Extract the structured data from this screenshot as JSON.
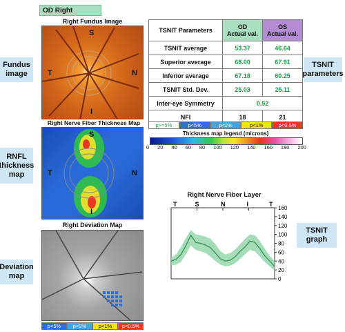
{
  "header": {
    "eye_tab": "OD Right"
  },
  "side_labels": {
    "fundus": "Fundus image",
    "rnfl": "RNFL thickness map",
    "deviation": "Deviation map",
    "tsnit_params": "TSNIT parameters",
    "tsnit_graph": "TSNIT graph"
  },
  "fundus": {
    "title": "Right Fundus Image",
    "dirs": {
      "s": "S",
      "n": "N",
      "i": "I",
      "t": "T"
    }
  },
  "thickness": {
    "title": "Right Nerve Fiber Thickness Map",
    "dirs": {
      "s": "S",
      "n": "N",
      "i": "I",
      "t": "T"
    }
  },
  "deviation": {
    "title": "Right Deviation Map",
    "legend": [
      "p<5%",
      "p<2%",
      "p<1%",
      "p<0.5%"
    ]
  },
  "table": {
    "header": {
      "param": "TSNIT Parameters",
      "od": "OD",
      "od_sub": "Actual val.",
      "os": "OS",
      "os_sub": "Actual val."
    },
    "rows": [
      {
        "label": "TSNIT average",
        "od": "53.37",
        "os": "46.64"
      },
      {
        "label": "Superior average",
        "od": "68.00",
        "os": "67.91"
      },
      {
        "label": "Inferior average",
        "od": "67.18",
        "os": "60.25"
      },
      {
        "label": "TSNIT Std. Dev.",
        "od": "25.03",
        "os": "25.11"
      }
    ],
    "symmetry": {
      "label": "Inter-eye Symmetry",
      "value": "0.92"
    },
    "nfi": {
      "label": "NFI",
      "od": "18",
      "os": "21"
    },
    "prob_legend": [
      "p>=5%",
      "p<5%",
      "p<2%",
      "p<1%",
      "p<0.5%"
    ]
  },
  "colorbar": {
    "title": "Thickness map legend (microns)",
    "ticks": [
      "0",
      "20",
      "40",
      "60",
      "80",
      "100",
      "120",
      "140",
      "160",
      "180",
      "200"
    ]
  },
  "colors": {
    "green_val": "#1e9a4a",
    "os_header": "#b48cd6",
    "od_header": "#a9dfbf",
    "band": "#8fd4a6",
    "line": "#2e8b57"
  },
  "chart_data": {
    "type": "line",
    "title": "Right Nerve Fiber Layer",
    "x_labels": [
      "T",
      "S",
      "N",
      "I",
      "T"
    ],
    "ylim": [
      0,
      160
    ],
    "yticks": [
      0,
      20,
      40,
      60,
      80,
      100,
      120,
      140,
      160
    ],
    "series": [
      {
        "values": [
          40,
          44,
          55,
          75,
          98,
          82,
          80,
          76,
          70,
          58,
          45,
          40,
          42,
          50,
          62,
          72,
          85,
          82,
          68,
          52,
          40,
          28
        ]
      }
    ],
    "band_upper": [
      48,
      55,
      72,
      92,
      110,
      100,
      98,
      95,
      90,
      78,
      62,
      55,
      58,
      66,
      78,
      90,
      100,
      98,
      85,
      68,
      52,
      40
    ],
    "band_lower": [
      30,
      32,
      38,
      55,
      75,
      65,
      62,
      58,
      50,
      40,
      32,
      28,
      30,
      35,
      45,
      55,
      65,
      62,
      50,
      38,
      28,
      18
    ]
  }
}
